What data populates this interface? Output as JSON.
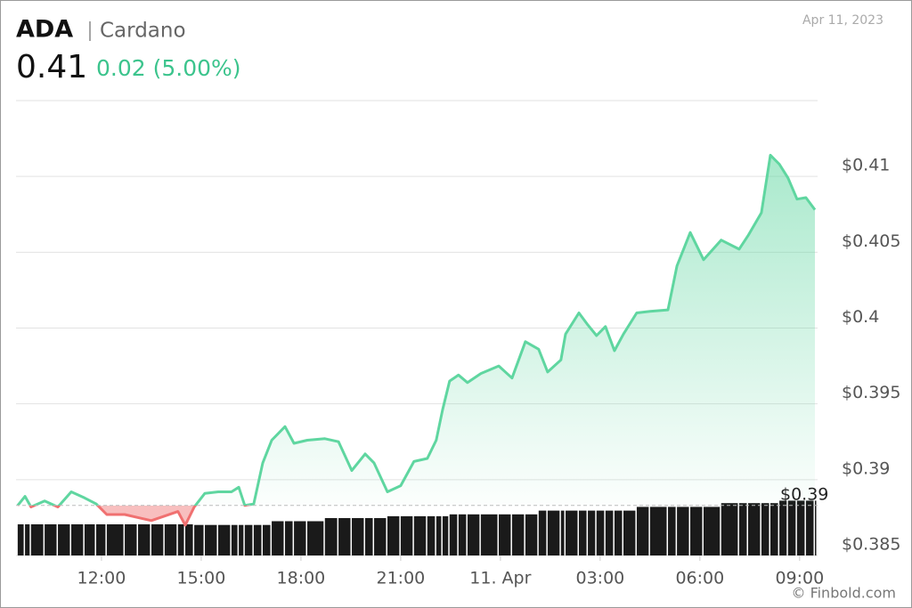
{
  "chart_data": {
    "type": "line",
    "title": "ADA",
    "subtitle": "Cardano",
    "price": 0.41,
    "change": "0.02 (5.00%)",
    "date": "Apr 11, 2023",
    "credit": "© Finbold.com",
    "x": [
      9.48,
      9.7,
      9.88,
      10.29,
      10.69,
      11.09,
      11.49,
      11.84,
      12.16,
      12.7,
      13.1,
      13.5,
      13.9,
      14.3,
      14.52,
      14.79,
      15.11,
      15.51,
      15.91,
      16.13,
      16.31,
      16.58,
      16.85,
      17.12,
      17.52,
      17.79,
      18.19,
      18.72,
      19.13,
      19.53,
      19.93,
      20.2,
      20.6,
      21.0,
      21.4,
      21.8,
      22.07,
      22.26,
      22.47,
      22.74,
      23.01,
      23.41,
      23.95,
      24.35,
      24.75,
      25.15,
      25.42,
      25.82,
      25.96,
      26.36,
      26.63,
      26.89,
      27.16,
      27.43,
      27.7,
      28.1,
      28.5,
      29.04,
      29.31,
      29.71,
      30.11,
      30.64,
      31.18,
      31.45,
      31.85,
      32.12,
      32.39,
      32.65,
      32.92,
      33.19,
      33.46
    ],
    "series": [
      {
        "name": "Price",
        "color": "#5fd6a0",
        "negative_color": "#f07070",
        "values": [
          0.3883,
          0.3889,
          0.3882,
          0.3886,
          0.3882,
          0.3892,
          0.3888,
          0.3884,
          0.3877,
          0.3877,
          0.3875,
          0.3873,
          0.3876,
          0.3879,
          0.387,
          0.3882,
          0.3891,
          0.3892,
          0.3892,
          0.3895,
          0.3883,
          0.3884,
          0.3911,
          0.3926,
          0.3935,
          0.3924,
          0.3926,
          0.3927,
          0.3925,
          0.3906,
          0.3917,
          0.3911,
          0.3892,
          0.3896,
          0.3912,
          0.3914,
          0.3926,
          0.3946,
          0.3965,
          0.3969,
          0.3964,
          0.397,
          0.3975,
          0.3967,
          0.3991,
          0.3986,
          0.3971,
          0.3979,
          0.3996,
          0.401,
          0.4002,
          0.3995,
          0.4001,
          0.3985,
          0.3996,
          0.401,
          0.4011,
          0.4012,
          0.4041,
          0.4063,
          0.4045,
          0.4058,
          0.4052,
          0.4061,
          0.4076,
          0.4114,
          0.4108,
          0.4099,
          0.4085,
          0.4086,
          0.4078
        ]
      },
      {
        "name": "Volume",
        "color": "#1a1a1a",
        "values": [
          50,
          50,
          50,
          50,
          50,
          50,
          50,
          50,
          50,
          50,
          50,
          50,
          50,
          50,
          50,
          49,
          49,
          49,
          49,
          49,
          49,
          49,
          49,
          55,
          55,
          55,
          55,
          60,
          60,
          60,
          60,
          60,
          63,
          63,
          63,
          63,
          63,
          63,
          66,
          66,
          66,
          66,
          66,
          66,
          66,
          72,
          72,
          72,
          72,
          72,
          72,
          72,
          72,
          72,
          72,
          78,
          78,
          78,
          78,
          78,
          78,
          84,
          84,
          84,
          84,
          84,
          88,
          88,
          88,
          88,
          88
        ]
      }
    ],
    "volume_lim": [
      0,
      100
    ],
    "xlim": [
      9.43,
      33.54
    ],
    "xticks": [
      {
        "value": 12,
        "label": "12:00"
      },
      {
        "value": 15,
        "label": "15:00"
      },
      {
        "value": 18,
        "label": "18:00"
      },
      {
        "value": 21,
        "label": "21:00"
      },
      {
        "value": 24,
        "label": "11. Apr"
      },
      {
        "value": 27,
        "label": "03:00"
      },
      {
        "value": 30,
        "label": "06:00"
      },
      {
        "value": 33,
        "label": "09:00"
      }
    ],
    "ylim": [
      0.385,
      0.415
    ],
    "yticks": [
      {
        "value": 0.385,
        "label": "$0.385"
      },
      {
        "value": 0.39,
        "label": "$0.39"
      },
      {
        "value": 0.395,
        "label": "$0.395"
      },
      {
        "value": 0.4,
        "label": "$0.4"
      },
      {
        "value": 0.405,
        "label": "$0.405"
      },
      {
        "value": 0.41,
        "label": "$0.41"
      }
    ],
    "previous_close": {
      "value": 0.3883,
      "label": "$0.39"
    },
    "grid": true
  }
}
